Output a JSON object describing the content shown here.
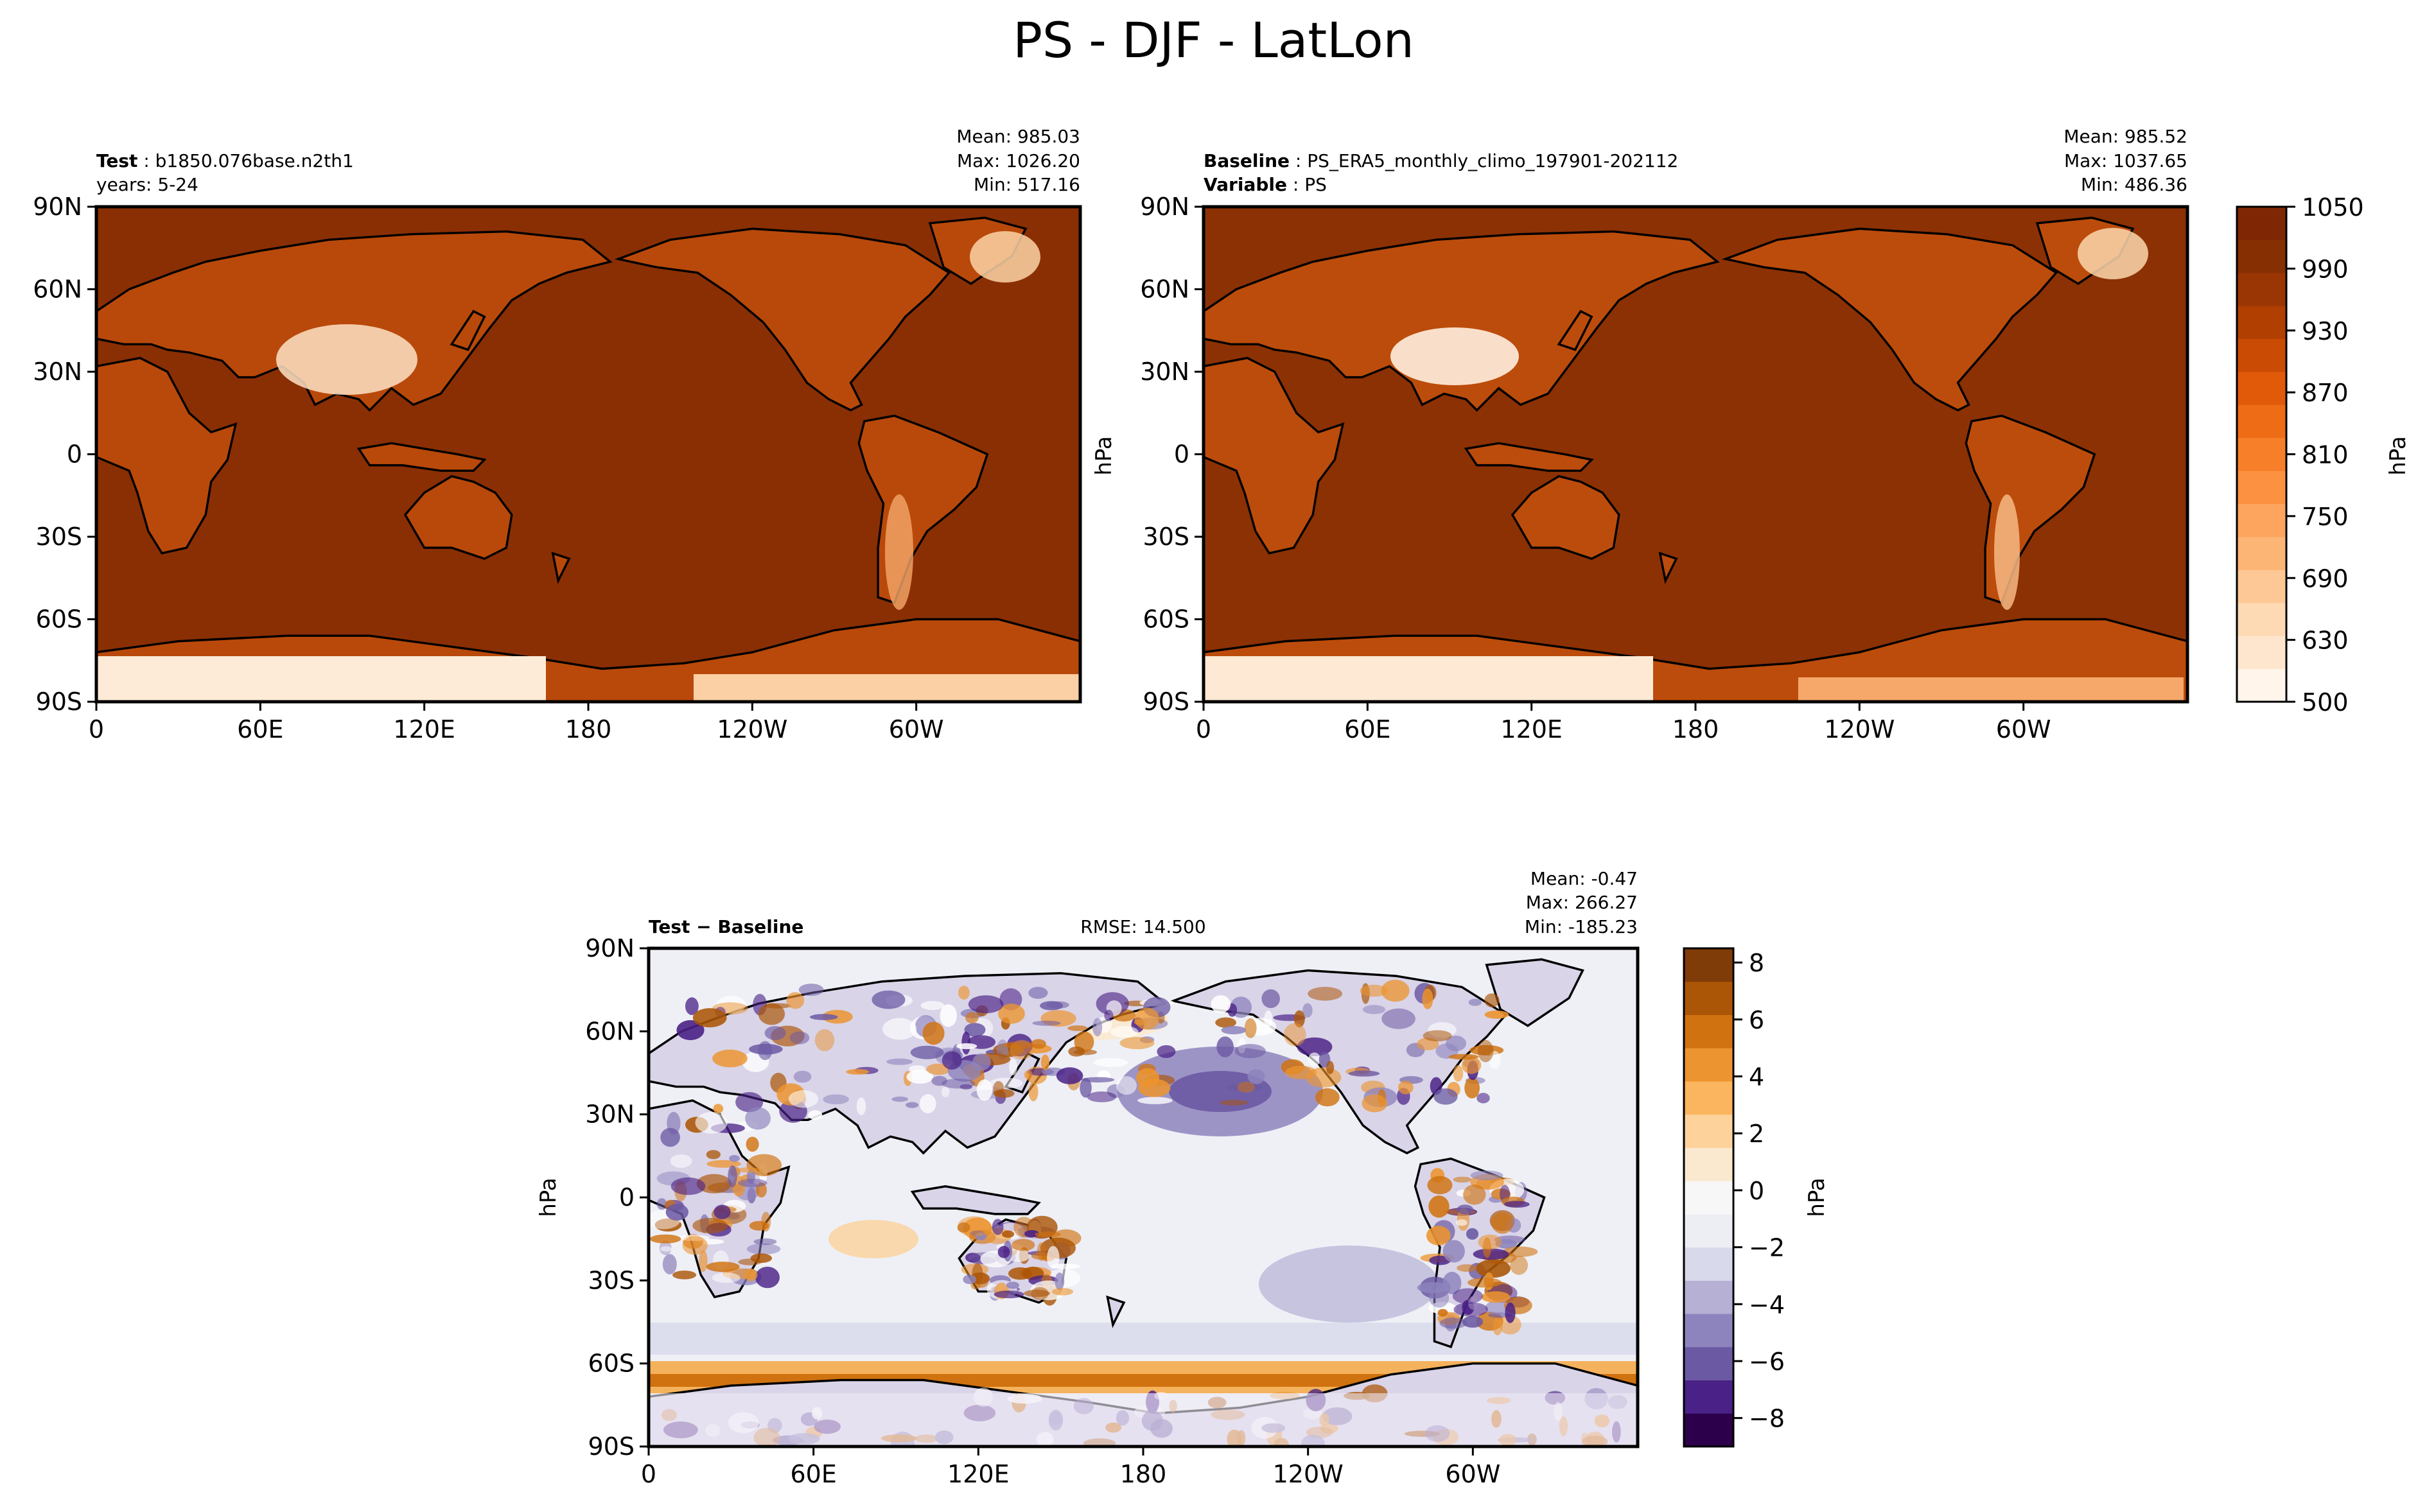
{
  "figure": {
    "title": "PS - DJF - LatLon"
  },
  "axes": {
    "lat_ticks": [
      "90N",
      "60N",
      "30N",
      "0",
      "30S",
      "60S",
      "90S"
    ],
    "lon_ticks": [
      "0",
      "60E",
      "120E",
      "180",
      "120W",
      "60W"
    ],
    "lon_tick_values": [
      0,
      60,
      120,
      180,
      240,
      300
    ],
    "lat_tick_values": [
      90,
      60,
      30,
      0,
      -30,
      -60,
      -90
    ],
    "lon_range": [
      0,
      360
    ],
    "lat_range": [
      -90,
      90
    ]
  },
  "panels": {
    "test": {
      "label_bold": "Test",
      "label_text": "b1850.076base.n2th1",
      "line2": "years: 5-24",
      "mean": "Mean: 985.03",
      "max": "Max: 1026.20",
      "min": "Min: 517.16"
    },
    "baseline": {
      "label_bold": "Baseline",
      "label_text": "PS_ERA5_monthly_climo_197901-202112",
      "line2_bold": "Variable",
      "line2_text": "PS",
      "mean": "Mean: 985.52",
      "max": "Max: 1037.65",
      "min": "Min: 486.36",
      "ylabel": "hPa"
    },
    "diff": {
      "label_bold": "Test − Baseline",
      "rmse": "RMSE: 14.500",
      "mean": "Mean: -0.47",
      "max": "Max: 266.27",
      "min": "Min: -185.23",
      "ylabel": "hPa"
    }
  },
  "colorbars": {
    "main": {
      "label": "hPa",
      "ticks": [
        "1050",
        "990",
        "930",
        "870",
        "810",
        "750",
        "690",
        "630",
        "500"
      ],
      "levels": [
        500,
        590,
        610,
        630,
        650,
        670,
        690,
        710,
        730,
        750,
        770,
        790,
        810,
        830,
        850,
        870,
        890,
        910,
        930,
        950,
        970,
        990,
        1010,
        1030,
        1050
      ],
      "colors": [
        "#fff5eb",
        "#fee6ce",
        "#fdd9b4",
        "#fdc895",
        "#fdb576",
        "#fda45f",
        "#fd9142",
        "#f77f29",
        "#ee6c16",
        "#e05a0a",
        "#ca4b03",
        "#b13f02",
        "#9a3603",
        "#862f03",
        "#7f2704"
      ]
    },
    "diff": {
      "label": "hPa",
      "ticks": [
        "8",
        "6",
        "4",
        "2",
        "0",
        "−2",
        "−4",
        "−6",
        "−8"
      ],
      "tick_values": [
        8,
        6,
        4,
        2,
        0,
        -2,
        -4,
        -6,
        -8
      ],
      "range": [
        -9,
        8.5
      ],
      "colors": [
        "#2d004b",
        "#4a2186",
        "#6b59a3",
        "#8e84bd",
        "#b5b0d4",
        "#d8daeb",
        "#eceef4",
        "#f7f7f7",
        "#fbe9cf",
        "#fdd29b",
        "#fbb55e",
        "#ec942f",
        "#d0720f",
        "#ab5506",
        "#7f3b08"
      ]
    }
  },
  "colors": {
    "ocean_test": "#8a2f04",
    "ocean_baseline": "#8c3104",
    "diff_ocean": "#eef0f6"
  }
}
